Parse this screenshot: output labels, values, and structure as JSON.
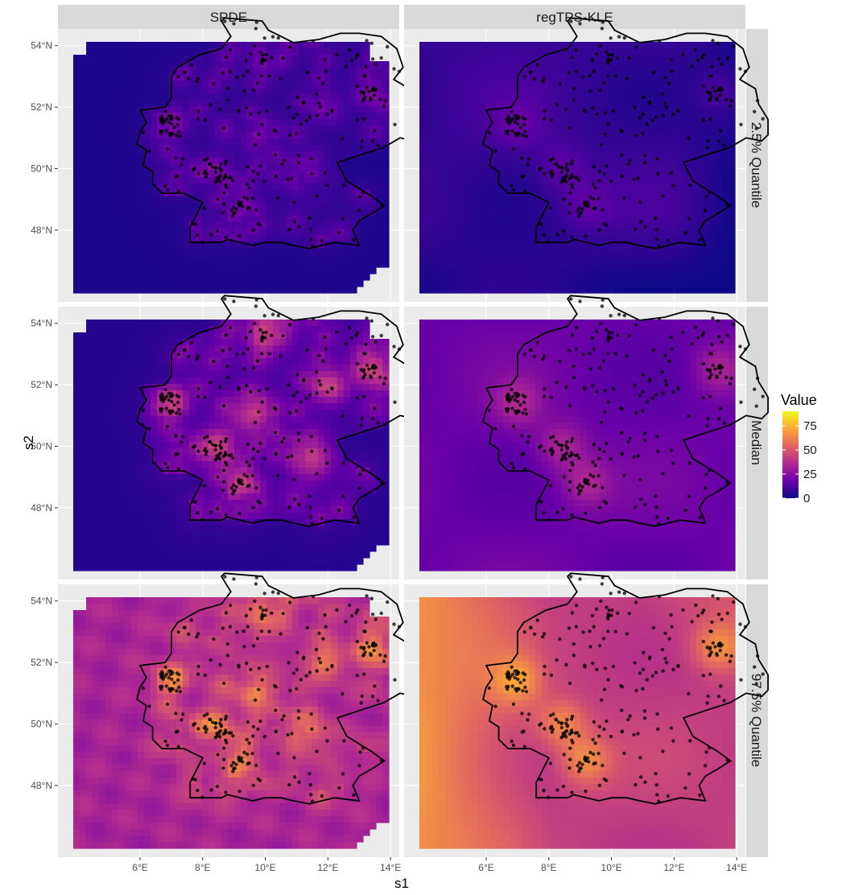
{
  "chart_data": {
    "type": "heatmap",
    "facet_columns": [
      "SPDE",
      "regTPS-KLE"
    ],
    "facet_rows": [
      "2.5% Quantile",
      "Median",
      "97.5% Quantile"
    ],
    "xlabel": "s1",
    "ylabel": "s2",
    "xlim": [
      5.7,
      15.5
    ],
    "ylim": [
      47.1,
      55.2
    ],
    "x_ticks": [
      6,
      8,
      10,
      12,
      14
    ],
    "x_tick_labels": [
      "6°E",
      "8°E",
      "10°E",
      "12°E",
      "14°E"
    ],
    "y_ticks": [
      48,
      50,
      52,
      54
    ],
    "y_tick_labels": [
      "48°N",
      "50°N",
      "52°N",
      "54°N"
    ],
    "legend": {
      "title": "Value",
      "breaks": [
        0,
        25,
        50,
        75
      ],
      "labels": [
        "0",
        "25",
        "50",
        "75"
      ],
      "range": [
        0,
        90
      ],
      "position": "right",
      "palette": [
        "#0d0887",
        "#6a00a8",
        "#b12a90",
        "#e16462",
        "#fca636",
        "#f0f921"
      ]
    },
    "grid": true,
    "outline_color": "#000000",
    "point_color": "#000000"
  }
}
